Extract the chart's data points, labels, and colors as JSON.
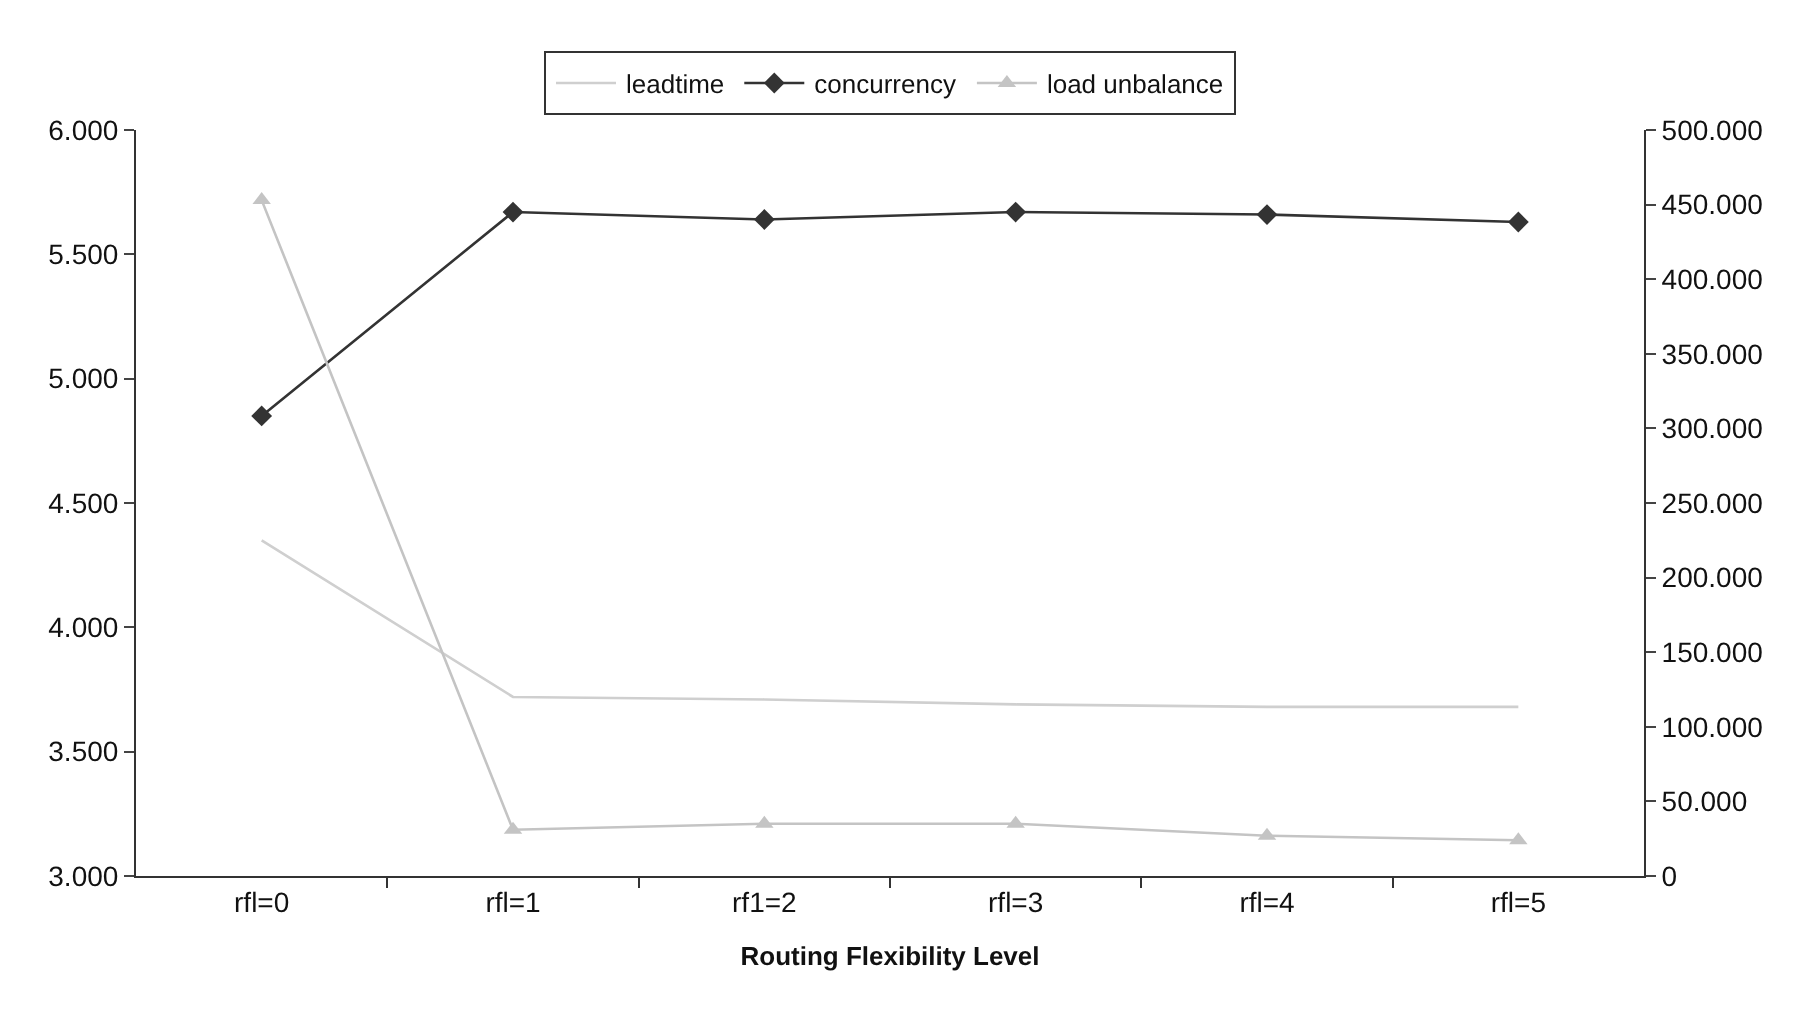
{
  "chart_data": {
    "type": "line",
    "xlabel": "Routing Flexibility Level",
    "categories": [
      "rfl=0",
      "rfl=1",
      "rf1=2",
      "rfl=3",
      "rfl=4",
      "rfl=5"
    ],
    "series": [
      {
        "name": "leadtime",
        "color": "#cfcfcf",
        "marker": "none",
        "values": [
          4350,
          3720,
          3710,
          3690,
          3680,
          3680
        ]
      },
      {
        "name": "concurrency",
        "color": "#333333",
        "marker": "diamond",
        "values": [
          4850,
          5670,
          5640,
          5670,
          5660,
          5630
        ]
      },
      {
        "name": "load unbalance",
        "color": "#c4c4c4",
        "marker": "triangle",
        "axis": "y2",
        "values": [
          453000,
          31000,
          35000,
          35000,
          27000,
          24000
        ]
      }
    ],
    "ylim": [
      3000,
      6000
    ],
    "yticks": [
      {
        "value": 3000,
        "label": "3.000"
      },
      {
        "value": 3500,
        "label": "3.500"
      },
      {
        "value": 4000,
        "label": "4.000"
      },
      {
        "value": 4500,
        "label": "4.500"
      },
      {
        "value": 5000,
        "label": "5.000"
      },
      {
        "value": 5500,
        "label": "5.500"
      },
      {
        "value": 6000,
        "label": "6.000"
      }
    ],
    "y2lim": [
      0,
      500000
    ],
    "y2ticks": [
      0,
      {
        "value": 50000,
        "label": "50.000"
      },
      {
        "value": 100000,
        "label": "100.000"
      },
      {
        "value": 150000,
        "label": "150.000"
      },
      {
        "value": 200000,
        "label": "200.000"
      },
      {
        "value": 250000,
        "label": "250.000"
      },
      {
        "value": 300000,
        "label": "300.000"
      },
      {
        "value": 350000,
        "label": "350.000"
      },
      {
        "value": 400000,
        "label": "400.000"
      },
      {
        "value": 450000,
        "label": "450.000"
      },
      {
        "value": 500000,
        "label": "500.000"
      }
    ],
    "grid": false,
    "legend": "top",
    "line_style": "solid"
  }
}
